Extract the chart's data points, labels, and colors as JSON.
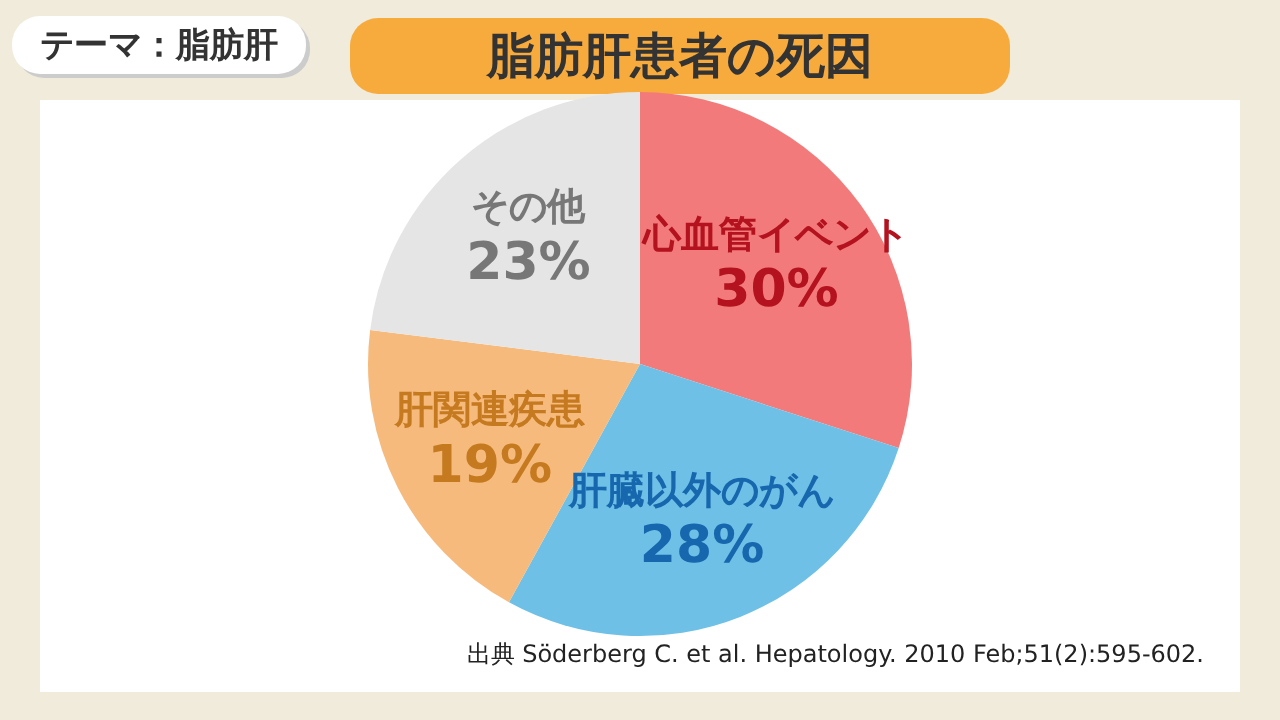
{
  "chart_data": {
    "type": "pie",
    "title": "脂肪肝患者の死因",
    "annotations": [
      "テーマ：脂肪肝",
      "出典  Söderberg C. et al. Hepatology. 2010 Feb;51(2):595-602."
    ],
    "categories": [
      "心血管イベント",
      "肝臓以外のがん",
      "肝関連疾患",
      "その他"
    ],
    "values": [
      30,
      28,
      19,
      23
    ],
    "value_labels": [
      "30%",
      "28%",
      "19%",
      "23%"
    ],
    "colors": [
      "#f37a7a",
      "#6ec0e6",
      "#f6ba7c",
      "#e5e5e5"
    ],
    "legend": false
  }
}
